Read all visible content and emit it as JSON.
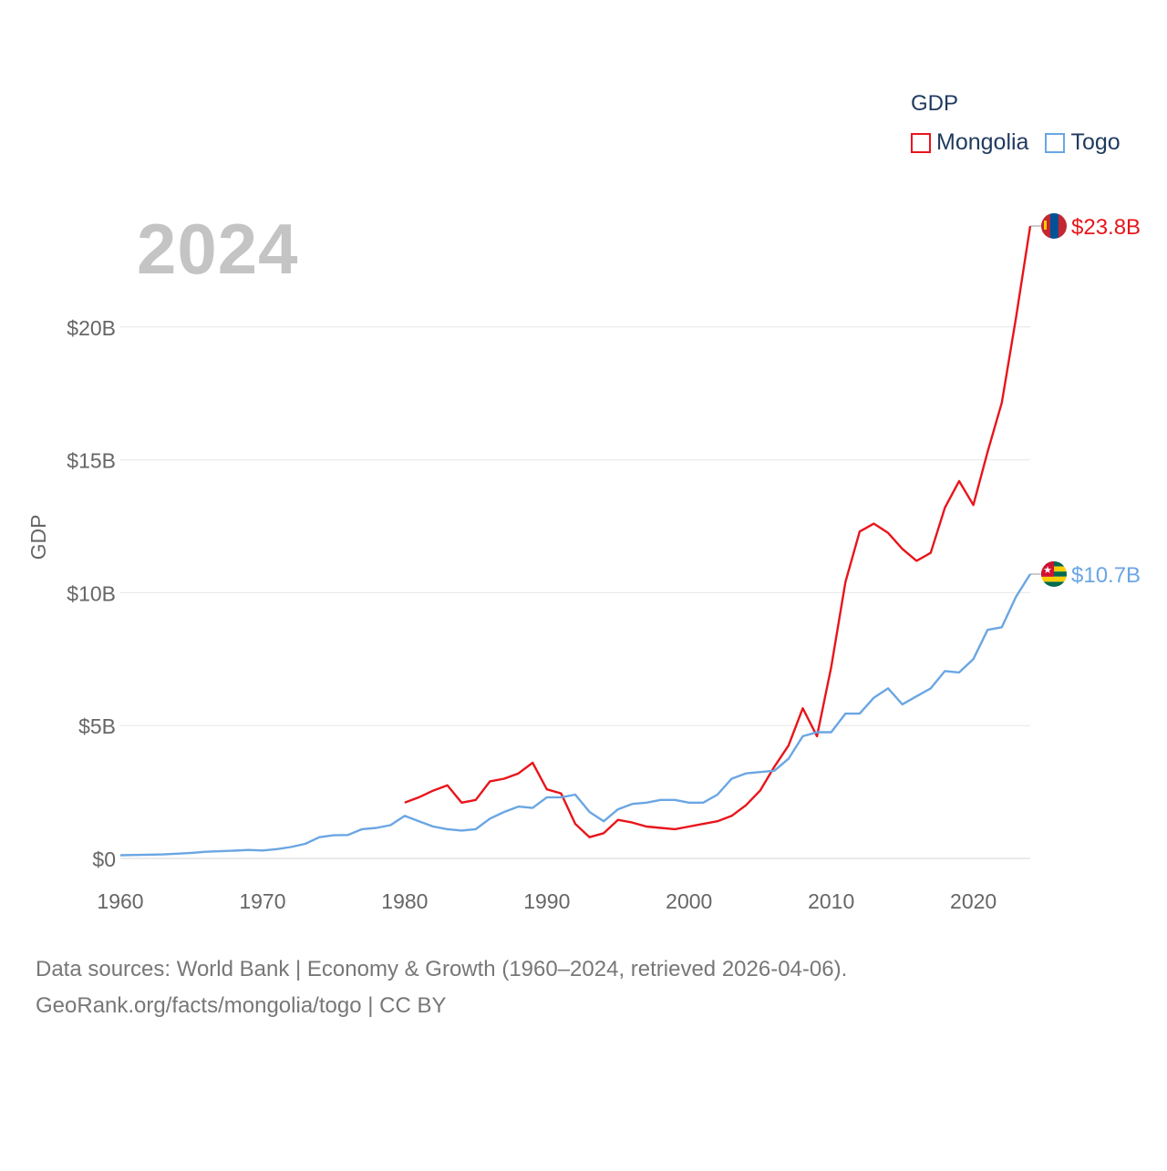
{
  "chart_data": {
    "type": "line",
    "year_label": "2024",
    "legend_title": "GDP",
    "ylabel": "GDP",
    "xlabel": "",
    "xlim": [
      1960,
      2024
    ],
    "ylim": [
      0,
      25
    ],
    "y_unit": "billion USD",
    "x_ticks": [
      1960,
      1970,
      1980,
      1990,
      2000,
      2010,
      2020
    ],
    "x_tick_labels": [
      "1960",
      "1970",
      "1980",
      "1990",
      "2000",
      "2010",
      "2020"
    ],
    "y_ticks": [
      0,
      5,
      10,
      15,
      20
    ],
    "y_tick_labels": [
      "$0",
      "$5B",
      "$10B",
      "$15B",
      "$20B"
    ],
    "grid": true,
    "legend_position": "top-right",
    "series": [
      {
        "name": "Mongolia",
        "color": "#e8151b",
        "end_label": "$23.8B",
        "flag_icon": "mongolia-flag-icon",
        "x": [
          1980,
          1981,
          1982,
          1983,
          1984,
          1985,
          1986,
          1987,
          1988,
          1989,
          1990,
          1991,
          1992,
          1993,
          1994,
          1995,
          1996,
          1997,
          1998,
          1999,
          2000,
          2001,
          2002,
          2003,
          2004,
          2005,
          2006,
          2007,
          2008,
          2009,
          2010,
          2011,
          2012,
          2013,
          2014,
          2015,
          2016,
          2017,
          2018,
          2019,
          2020,
          2021,
          2022,
          2023,
          2024
        ],
        "values": [
          2.1,
          2.3,
          2.55,
          2.75,
          2.1,
          2.2,
          2.9,
          3.0,
          3.2,
          3.6,
          2.6,
          2.45,
          1.3,
          0.8,
          0.95,
          1.45,
          1.35,
          1.2,
          1.15,
          1.1,
          1.2,
          1.3,
          1.4,
          1.6,
          2.0,
          2.55,
          3.45,
          4.25,
          5.65,
          4.6,
          7.2,
          10.4,
          12.3,
          12.6,
          12.25,
          11.65,
          11.2,
          11.5,
          13.2,
          14.2,
          13.3,
          15.3,
          17.15,
          20.35,
          23.8
        ]
      },
      {
        "name": "Togo",
        "color": "#6aa6e3",
        "end_label": "$10.7B",
        "flag_icon": "togo-flag-icon",
        "x": [
          1960,
          1961,
          1962,
          1963,
          1964,
          1965,
          1966,
          1967,
          1968,
          1969,
          1970,
          1971,
          1972,
          1973,
          1974,
          1975,
          1976,
          1977,
          1978,
          1979,
          1980,
          1981,
          1982,
          1983,
          1984,
          1985,
          1986,
          1987,
          1988,
          1989,
          1990,
          1991,
          1992,
          1993,
          1994,
          1995,
          1996,
          1997,
          1998,
          1999,
          2000,
          2001,
          2002,
          2003,
          2004,
          2005,
          2006,
          2007,
          2008,
          2009,
          2010,
          2011,
          2012,
          2013,
          2014,
          2015,
          2016,
          2017,
          2018,
          2019,
          2020,
          2021,
          2022,
          2023,
          2024
        ],
        "values": [
          0.12,
          0.13,
          0.14,
          0.15,
          0.18,
          0.21,
          0.25,
          0.27,
          0.29,
          0.32,
          0.3,
          0.35,
          0.43,
          0.55,
          0.8,
          0.87,
          0.88,
          1.1,
          1.15,
          1.25,
          1.6,
          1.4,
          1.2,
          1.1,
          1.05,
          1.1,
          1.5,
          1.75,
          1.95,
          1.9,
          2.3,
          2.3,
          2.4,
          1.75,
          1.4,
          1.85,
          2.05,
          2.1,
          2.2,
          2.2,
          2.1,
          2.1,
          2.4,
          3.0,
          3.2,
          3.25,
          3.3,
          3.75,
          4.6,
          4.75,
          4.75,
          5.45,
          5.45,
          6.05,
          6.4,
          5.8,
          6.1,
          6.4,
          7.05,
          7.0,
          7.5,
          8.6,
          8.7,
          9.85,
          10.7
        ]
      }
    ]
  },
  "footer": {
    "line1": "Data sources: World Bank | Economy & Growth (1960–2024, retrieved 2026-04-06).",
    "line2": "GeoRank.org/facts/mongolia/togo | CC BY"
  }
}
